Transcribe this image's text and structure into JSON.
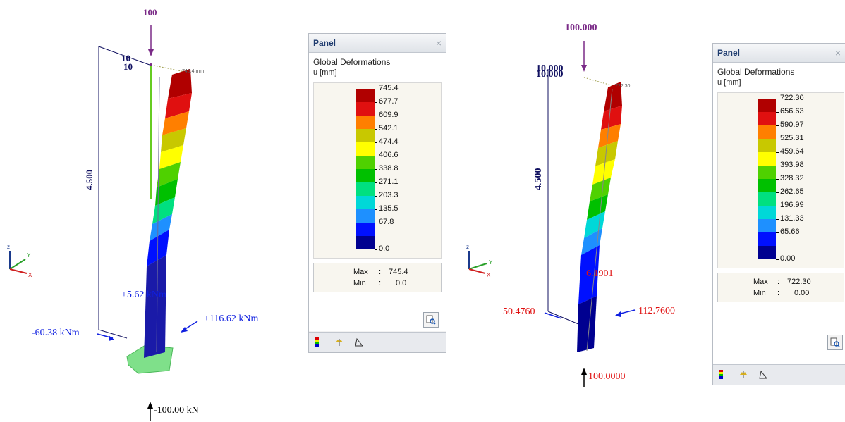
{
  "left_model": {
    "top_load": "100",
    "top_dim_1": "10",
    "top_dim_2": "10",
    "height_dim": "4.500",
    "tip_label": "745.4 mm",
    "moment_mid": "+5.62 kNm",
    "moment_right": "+116.62 kNm",
    "moment_left": "-60.38 kNm",
    "axial": "-100.00 kN"
  },
  "right_model": {
    "top_load": "100.000",
    "top_dim_1": "10.000",
    "top_dim_2": "10.000",
    "height_dim": "4.500",
    "tip_label": "722.30",
    "mid_value": "6.1901",
    "left_value": "50.4760",
    "right_value": "112.7600",
    "bottom_value": "100.0000"
  },
  "axes": {
    "z": "z",
    "y": "Y",
    "x": "X"
  },
  "panel_left": {
    "title": "Panel",
    "close": "×",
    "heading": "Global Deformations",
    "unit": "u [mm]",
    "legend": [
      "745.4",
      "677.7",
      "609.9",
      "542.1",
      "474.4",
      "406.6",
      "338.8",
      "271.1",
      "203.3",
      "135.5",
      "67.8",
      "0.0"
    ],
    "max_label": "Max",
    "max_value": "745.4",
    "min_label": "Min",
    "min_value": "0.0",
    "colon": ":"
  },
  "panel_right": {
    "title": "Panel",
    "close": "×",
    "heading": "Global Deformations",
    "unit": "u [mm]",
    "legend": [
      "722.30",
      "656.63",
      "590.97",
      "525.31",
      "459.64",
      "393.98",
      "328.32",
      "262.65",
      "196.99",
      "131.33",
      "65.66",
      "0.00"
    ],
    "max_label": "Max",
    "max_value": "722.30",
    "min_label": "Min",
    "min_value": "0.00",
    "colon": ":"
  },
  "colors": {
    "scale": [
      "#b00000",
      "#e01010",
      "#ff7f00",
      "#c8c800",
      "#ffff00",
      "#4fd100",
      "#00c000",
      "#00e080",
      "#00d8d8",
      "#1e90ff",
      "#0010ff",
      "#000090"
    ],
    "load_purple": "#7a2a87",
    "label_blue": "#1020e0",
    "label_red": "#e01010",
    "dim_navy": "#101060"
  }
}
